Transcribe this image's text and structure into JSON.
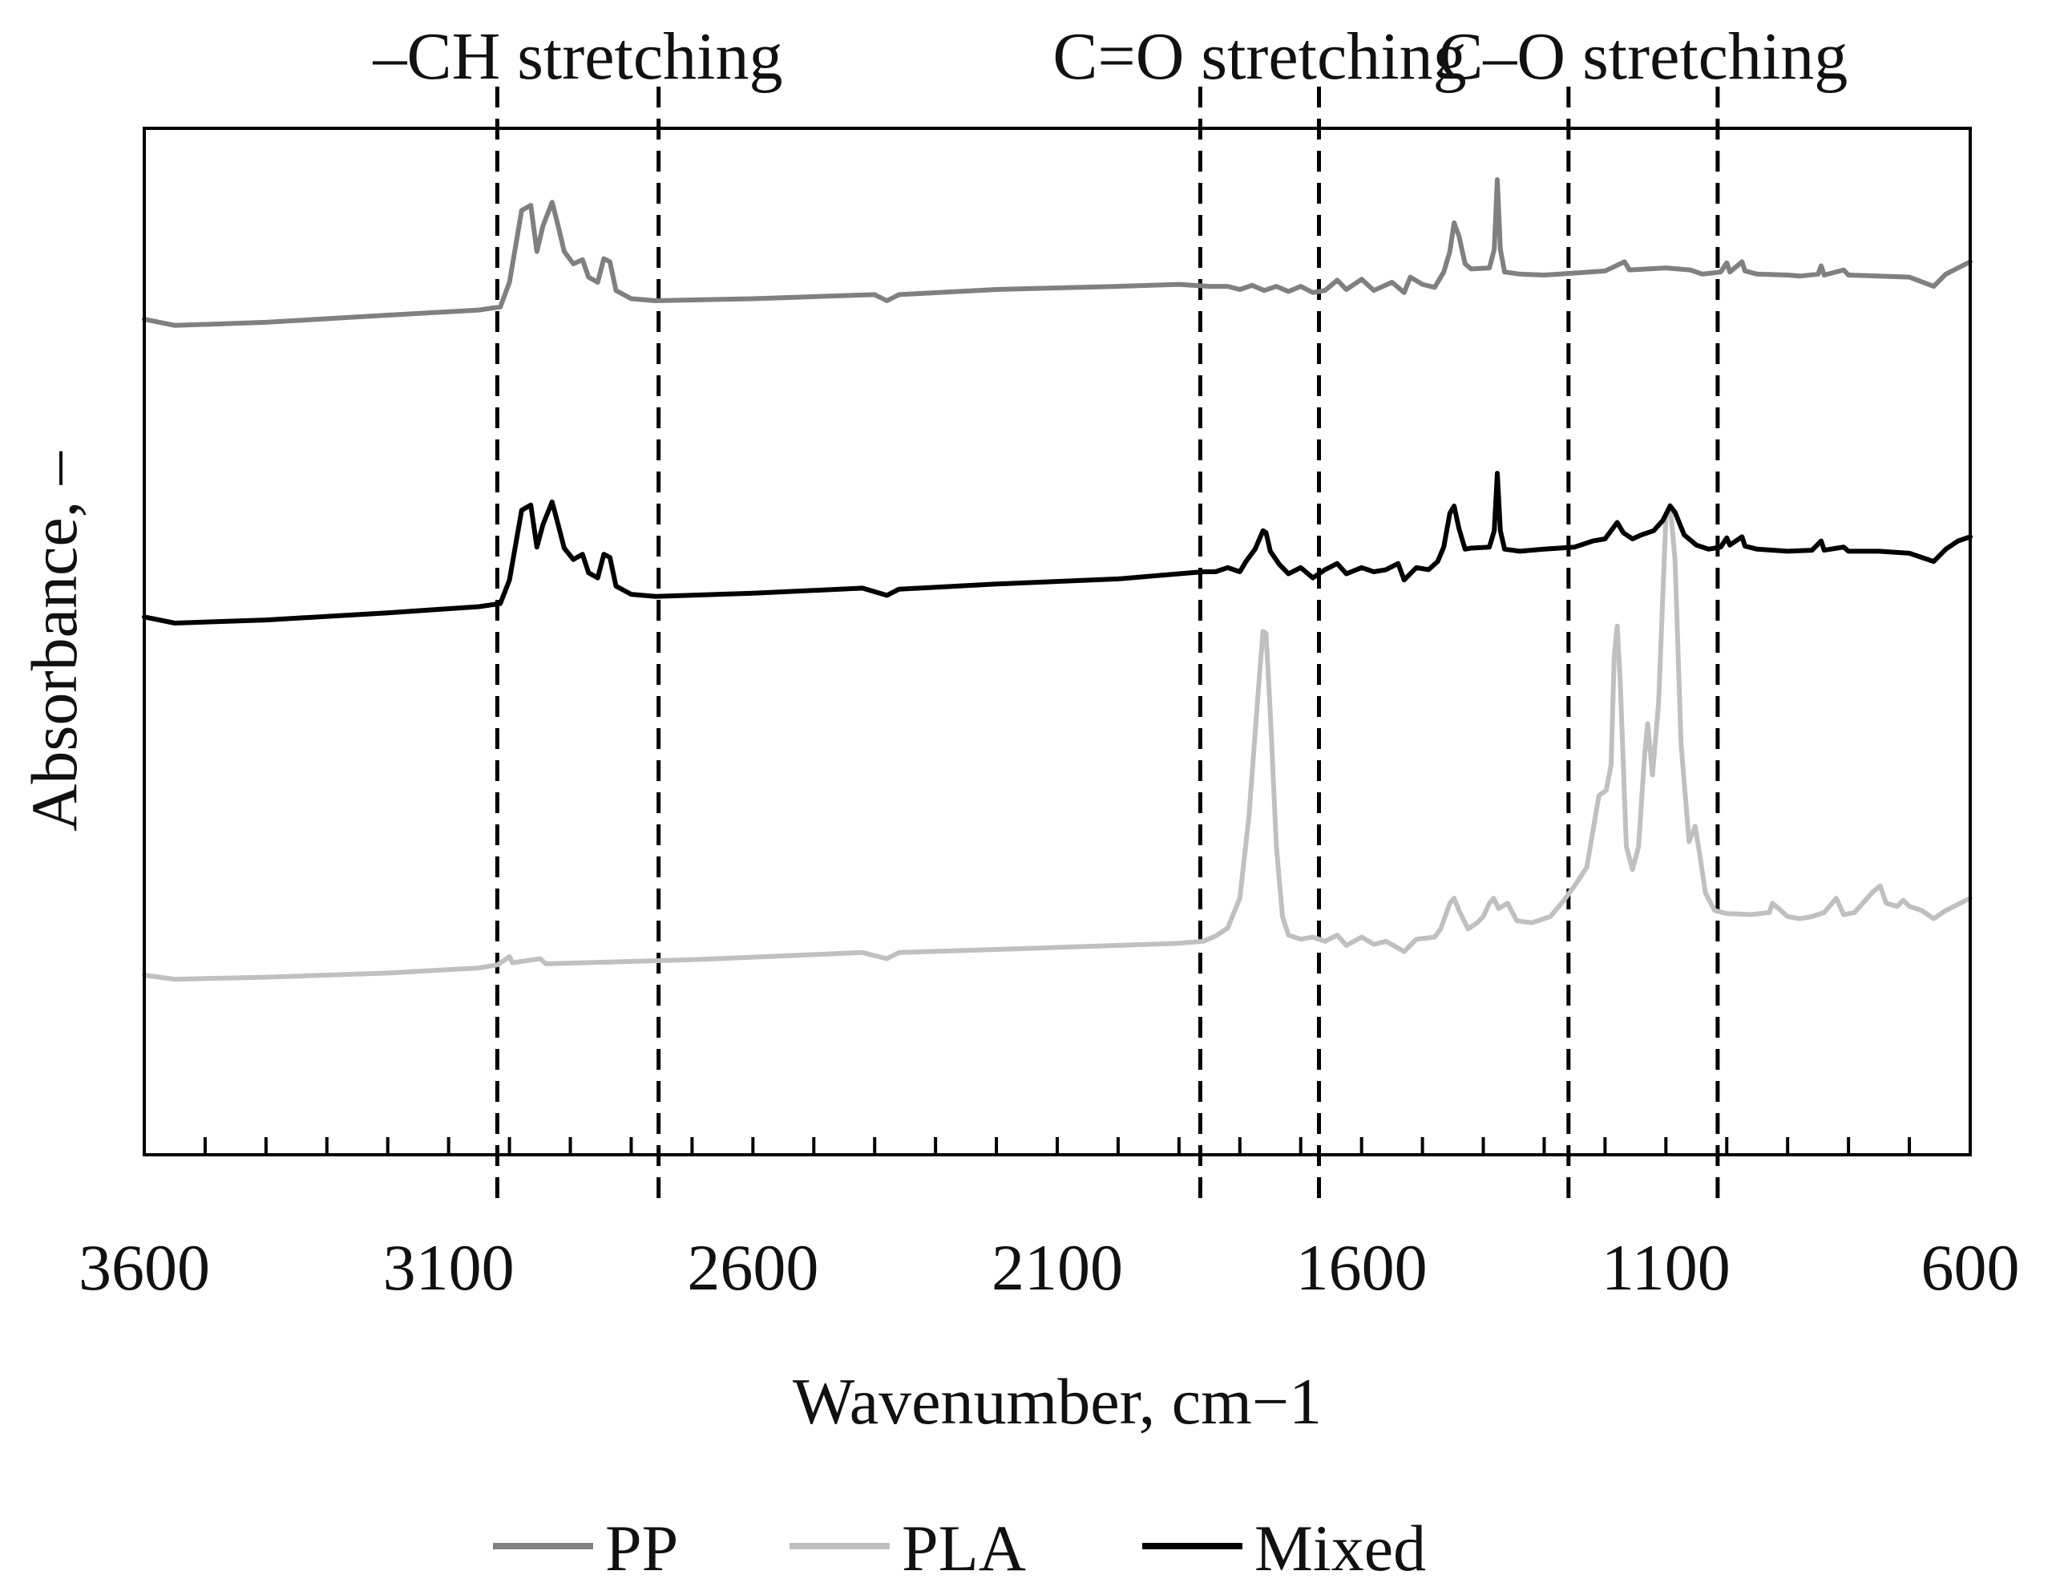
{
  "chart_data": {
    "type": "line",
    "title": "",
    "xlabel": "Wavenumber, cm−1",
    "ylabel": "Absorbance, –",
    "xlim": [
      3600,
      600
    ],
    "x_reversed": true,
    "ylim": [
      0,
      1
    ],
    "y_ticks_shown": false,
    "grid": false,
    "x_ticks": [
      3600,
      3100,
      2600,
      2100,
      1600,
      1100,
      600
    ],
    "x_tick_labels": [
      "3600",
      "3100",
      "2600",
      "2100",
      "1600",
      "1100",
      "600"
    ],
    "x_minor_tick_step": 100,
    "regions": [
      {
        "label": "–CH stretching",
        "from": 3020,
        "to": 2755
      },
      {
        "label": "C=O stretching",
        "from": 1865,
        "to": 1670
      },
      {
        "label": "C–O stretching",
        "from": 1260,
        "to": 1015
      }
    ],
    "legend": {
      "position": "bottom-center"
    },
    "series": [
      {
        "name": "PP",
        "color": "#808080",
        "points": [
          [
            3600,
            0.814
          ],
          [
            3550,
            0.808
          ],
          [
            3400,
            0.811
          ],
          [
            3200,
            0.818
          ],
          [
            3050,
            0.823
          ],
          [
            3015,
            0.826
          ],
          [
            3000,
            0.85
          ],
          [
            2980,
            0.92
          ],
          [
            2965,
            0.925
          ],
          [
            2955,
            0.88
          ],
          [
            2945,
            0.905
          ],
          [
            2930,
            0.928
          ],
          [
            2920,
            0.905
          ],
          [
            2910,
            0.88
          ],
          [
            2895,
            0.868
          ],
          [
            2880,
            0.872
          ],
          [
            2870,
            0.855
          ],
          [
            2855,
            0.85
          ],
          [
            2845,
            0.873
          ],
          [
            2835,
            0.87
          ],
          [
            2825,
            0.842
          ],
          [
            2800,
            0.834
          ],
          [
            2760,
            0.832
          ],
          [
            2600,
            0.834
          ],
          [
            2400,
            0.838
          ],
          [
            2380,
            0.832
          ],
          [
            2360,
            0.838
          ],
          [
            2200,
            0.843
          ],
          [
            2000,
            0.846
          ],
          [
            1900,
            0.848
          ],
          [
            1850,
            0.846
          ],
          [
            1820,
            0.846
          ],
          [
            1800,
            0.843
          ],
          [
            1780,
            0.847
          ],
          [
            1760,
            0.842
          ],
          [
            1740,
            0.846
          ],
          [
            1720,
            0.841
          ],
          [
            1700,
            0.846
          ],
          [
            1680,
            0.84
          ],
          [
            1660,
            0.842
          ],
          [
            1640,
            0.852
          ],
          [
            1625,
            0.843
          ],
          [
            1600,
            0.853
          ],
          [
            1580,
            0.842
          ],
          [
            1550,
            0.85
          ],
          [
            1530,
            0.84
          ],
          [
            1520,
            0.855
          ],
          [
            1500,
            0.848
          ],
          [
            1480,
            0.845
          ],
          [
            1465,
            0.86
          ],
          [
            1455,
            0.88
          ],
          [
            1448,
            0.908
          ],
          [
            1440,
            0.895
          ],
          [
            1430,
            0.868
          ],
          [
            1420,
            0.863
          ],
          [
            1390,
            0.864
          ],
          [
            1382,
            0.882
          ],
          [
            1377,
            0.95
          ],
          [
            1372,
            0.882
          ],
          [
            1365,
            0.86
          ],
          [
            1340,
            0.858
          ],
          [
            1300,
            0.857
          ],
          [
            1250,
            0.859
          ],
          [
            1200,
            0.861
          ],
          [
            1168,
            0.87
          ],
          [
            1160,
            0.862
          ],
          [
            1100,
            0.864
          ],
          [
            1060,
            0.862
          ],
          [
            1040,
            0.858
          ],
          [
            1010,
            0.86
          ],
          [
            1000,
            0.869
          ],
          [
            995,
            0.86
          ],
          [
            975,
            0.87
          ],
          [
            970,
            0.861
          ],
          [
            950,
            0.858
          ],
          [
            900,
            0.857
          ],
          [
            880,
            0.856
          ],
          [
            850,
            0.858
          ],
          [
            845,
            0.866
          ],
          [
            840,
            0.857
          ],
          [
            808,
            0.862
          ],
          [
            800,
            0.857
          ],
          [
            750,
            0.856
          ],
          [
            700,
            0.855
          ],
          [
            660,
            0.846
          ],
          [
            640,
            0.858
          ],
          [
            620,
            0.864
          ],
          [
            600,
            0.87
          ]
        ]
      },
      {
        "name": "PLA",
        "color": "#c0c0c0",
        "points": [
          [
            3600,
            0.175
          ],
          [
            3550,
            0.171
          ],
          [
            3400,
            0.173
          ],
          [
            3200,
            0.177
          ],
          [
            3050,
            0.182
          ],
          [
            3020,
            0.185
          ],
          [
            3000,
            0.193
          ],
          [
            2995,
            0.187
          ],
          [
            2950,
            0.191
          ],
          [
            2940,
            0.186
          ],
          [
            2700,
            0.19
          ],
          [
            2500,
            0.195
          ],
          [
            2420,
            0.197
          ],
          [
            2380,
            0.191
          ],
          [
            2360,
            0.197
          ],
          [
            2200,
            0.2
          ],
          [
            2000,
            0.204
          ],
          [
            1900,
            0.206
          ],
          [
            1860,
            0.208
          ],
          [
            1840,
            0.213
          ],
          [
            1820,
            0.221
          ],
          [
            1800,
            0.25
          ],
          [
            1785,
            0.33
          ],
          [
            1770,
            0.45
          ],
          [
            1762,
            0.51
          ],
          [
            1757,
            0.508
          ],
          [
            1750,
            0.43
          ],
          [
            1740,
            0.3
          ],
          [
            1730,
            0.232
          ],
          [
            1720,
            0.214
          ],
          [
            1700,
            0.21
          ],
          [
            1680,
            0.212
          ],
          [
            1660,
            0.208
          ],
          [
            1640,
            0.214
          ],
          [
            1625,
            0.204
          ],
          [
            1600,
            0.212
          ],
          [
            1580,
            0.205
          ],
          [
            1560,
            0.208
          ],
          [
            1530,
            0.198
          ],
          [
            1510,
            0.21
          ],
          [
            1480,
            0.212
          ],
          [
            1470,
            0.22
          ],
          [
            1455,
            0.245
          ],
          [
            1448,
            0.25
          ],
          [
            1440,
            0.238
          ],
          [
            1425,
            0.22
          ],
          [
            1410,
            0.226
          ],
          [
            1400,
            0.232
          ],
          [
            1390,
            0.245
          ],
          [
            1383,
            0.25
          ],
          [
            1375,
            0.24
          ],
          [
            1360,
            0.245
          ],
          [
            1345,
            0.228
          ],
          [
            1320,
            0.226
          ],
          [
            1290,
            0.232
          ],
          [
            1270,
            0.246
          ],
          [
            1250,
            0.262
          ],
          [
            1230,
            0.28
          ],
          [
            1210,
            0.35
          ],
          [
            1198,
            0.355
          ],
          [
            1190,
            0.38
          ],
          [
            1185,
            0.485
          ],
          [
            1180,
            0.515
          ],
          [
            1175,
            0.46
          ],
          [
            1165,
            0.3
          ],
          [
            1155,
            0.278
          ],
          [
            1145,
            0.3
          ],
          [
            1135,
            0.39
          ],
          [
            1130,
            0.42
          ],
          [
            1122,
            0.37
          ],
          [
            1112,
            0.44
          ],
          [
            1100,
            0.62
          ],
          [
            1093,
            0.633
          ],
          [
            1085,
            0.58
          ],
          [
            1075,
            0.4
          ],
          [
            1062,
            0.305
          ],
          [
            1052,
            0.32
          ],
          [
            1045,
            0.295
          ],
          [
            1035,
            0.255
          ],
          [
            1020,
            0.238
          ],
          [
            1000,
            0.235
          ],
          [
            960,
            0.234
          ],
          [
            930,
            0.236
          ],
          [
            925,
            0.245
          ],
          [
            915,
            0.24
          ],
          [
            900,
            0.232
          ],
          [
            880,
            0.23
          ],
          [
            860,
            0.232
          ],
          [
            840,
            0.236
          ],
          [
            820,
            0.25
          ],
          [
            808,
            0.234
          ],
          [
            790,
            0.236
          ],
          [
            760,
            0.256
          ],
          [
            748,
            0.262
          ],
          [
            738,
            0.245
          ],
          [
            720,
            0.242
          ],
          [
            710,
            0.248
          ],
          [
            700,
            0.242
          ],
          [
            680,
            0.238
          ],
          [
            660,
            0.23
          ],
          [
            640,
            0.238
          ],
          [
            620,
            0.244
          ],
          [
            600,
            0.25
          ]
        ]
      },
      {
        "name": "Mixed",
        "color": "#000000",
        "points": [
          [
            3600,
            0.524
          ],
          [
            3550,
            0.518
          ],
          [
            3400,
            0.521
          ],
          [
            3200,
            0.528
          ],
          [
            3050,
            0.534
          ],
          [
            3015,
            0.537
          ],
          [
            3000,
            0.56
          ],
          [
            2980,
            0.628
          ],
          [
            2965,
            0.633
          ],
          [
            2955,
            0.592
          ],
          [
            2945,
            0.614
          ],
          [
            2930,
            0.636
          ],
          [
            2920,
            0.614
          ],
          [
            2910,
            0.591
          ],
          [
            2895,
            0.58
          ],
          [
            2880,
            0.585
          ],
          [
            2870,
            0.567
          ],
          [
            2855,
            0.562
          ],
          [
            2845,
            0.585
          ],
          [
            2835,
            0.582
          ],
          [
            2825,
            0.554
          ],
          [
            2800,
            0.546
          ],
          [
            2760,
            0.544
          ],
          [
            2600,
            0.547
          ],
          [
            2420,
            0.552
          ],
          [
            2380,
            0.545
          ],
          [
            2360,
            0.551
          ],
          [
            2200,
            0.556
          ],
          [
            2000,
            0.561
          ],
          [
            1900,
            0.566
          ],
          [
            1860,
            0.568
          ],
          [
            1840,
            0.568
          ],
          [
            1820,
            0.572
          ],
          [
            1800,
            0.568
          ],
          [
            1790,
            0.578
          ],
          [
            1775,
            0.59
          ],
          [
            1762,
            0.608
          ],
          [
            1757,
            0.606
          ],
          [
            1750,
            0.588
          ],
          [
            1735,
            0.575
          ],
          [
            1720,
            0.566
          ],
          [
            1700,
            0.572
          ],
          [
            1680,
            0.562
          ],
          [
            1660,
            0.57
          ],
          [
            1640,
            0.576
          ],
          [
            1625,
            0.566
          ],
          [
            1600,
            0.572
          ],
          [
            1580,
            0.568
          ],
          [
            1560,
            0.57
          ],
          [
            1540,
            0.576
          ],
          [
            1530,
            0.56
          ],
          [
            1510,
            0.572
          ],
          [
            1490,
            0.57
          ],
          [
            1475,
            0.578
          ],
          [
            1465,
            0.592
          ],
          [
            1455,
            0.625
          ],
          [
            1448,
            0.632
          ],
          [
            1440,
            0.61
          ],
          [
            1430,
            0.59
          ],
          [
            1420,
            0.591
          ],
          [
            1390,
            0.592
          ],
          [
            1382,
            0.608
          ],
          [
            1377,
            0.664
          ],
          [
            1372,
            0.608
          ],
          [
            1365,
            0.59
          ],
          [
            1340,
            0.588
          ],
          [
            1300,
            0.59
          ],
          [
            1250,
            0.592
          ],
          [
            1220,
            0.598
          ],
          [
            1200,
            0.6
          ],
          [
            1185,
            0.612
          ],
          [
            1180,
            0.616
          ],
          [
            1170,
            0.606
          ],
          [
            1155,
            0.6
          ],
          [
            1140,
            0.604
          ],
          [
            1120,
            0.608
          ],
          [
            1105,
            0.618
          ],
          [
            1093,
            0.632
          ],
          [
            1085,
            0.626
          ],
          [
            1070,
            0.604
          ],
          [
            1050,
            0.594
          ],
          [
            1030,
            0.59
          ],
          [
            1010,
            0.592
          ],
          [
            1000,
            0.601
          ],
          [
            995,
            0.594
          ],
          [
            975,
            0.602
          ],
          [
            970,
            0.593
          ],
          [
            950,
            0.59
          ],
          [
            900,
            0.588
          ],
          [
            860,
            0.589
          ],
          [
            845,
            0.598
          ],
          [
            840,
            0.589
          ],
          [
            808,
            0.592
          ],
          [
            800,
            0.588
          ],
          [
            750,
            0.588
          ],
          [
            700,
            0.586
          ],
          [
            660,
            0.578
          ],
          [
            640,
            0.59
          ],
          [
            620,
            0.598
          ],
          [
            600,
            0.602
          ]
        ]
      }
    ]
  }
}
